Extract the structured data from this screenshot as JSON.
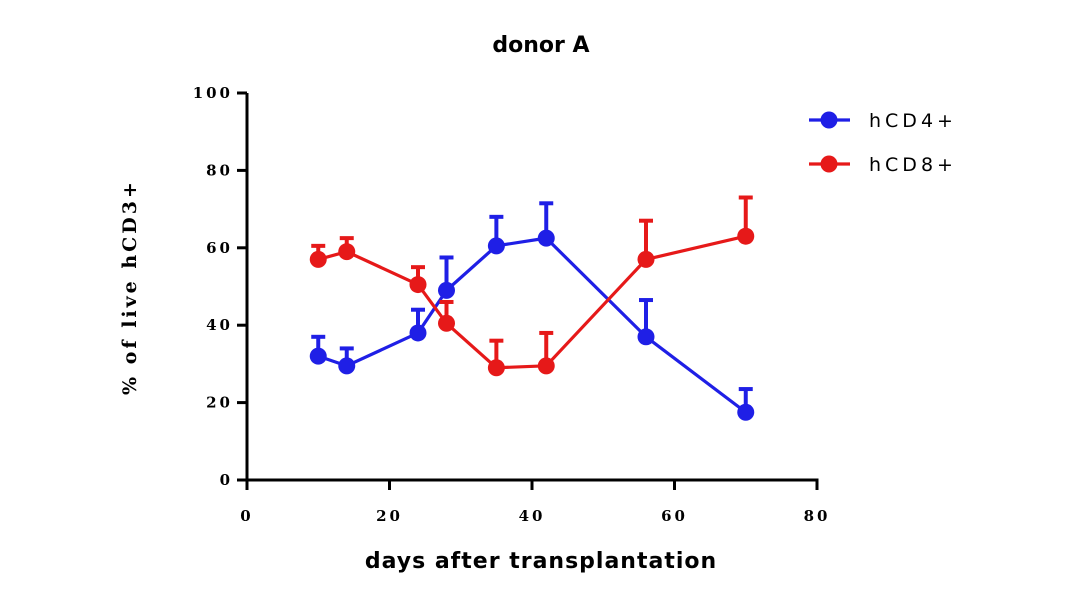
{
  "chart_data": {
    "type": "line",
    "title": "donor A",
    "xlabel": "days after transplantation",
    "ylabel": "% of live hCD3+",
    "xlim": [
      0,
      80
    ],
    "ylim": [
      0,
      100
    ],
    "xticks": [
      "0",
      "20",
      "40",
      "60",
      "80"
    ],
    "yticks": [
      "0",
      "20",
      "40",
      "60",
      "80",
      "100"
    ],
    "grid": false,
    "legend_position": "top-right",
    "series": [
      {
        "name": "hCD4+",
        "color": "#1f1fe6",
        "x": [
          10,
          14,
          24,
          28,
          35,
          42,
          56,
          70
        ],
        "y": [
          32,
          29.5,
          38,
          49,
          60.5,
          62.5,
          37,
          17.5
        ],
        "error": [
          5,
          4.5,
          6,
          8.5,
          7.5,
          9,
          9.5,
          6
        ]
      },
      {
        "name": "hCD8+",
        "color": "#e61919",
        "x": [
          10,
          14,
          24,
          28,
          35,
          42,
          56,
          70
        ],
        "y": [
          57,
          59,
          50.5,
          40.5,
          29,
          29.5,
          57,
          63
        ],
        "error": [
          3.5,
          3.5,
          4.5,
          5.5,
          7,
          8.5,
          10,
          10
        ]
      }
    ]
  }
}
